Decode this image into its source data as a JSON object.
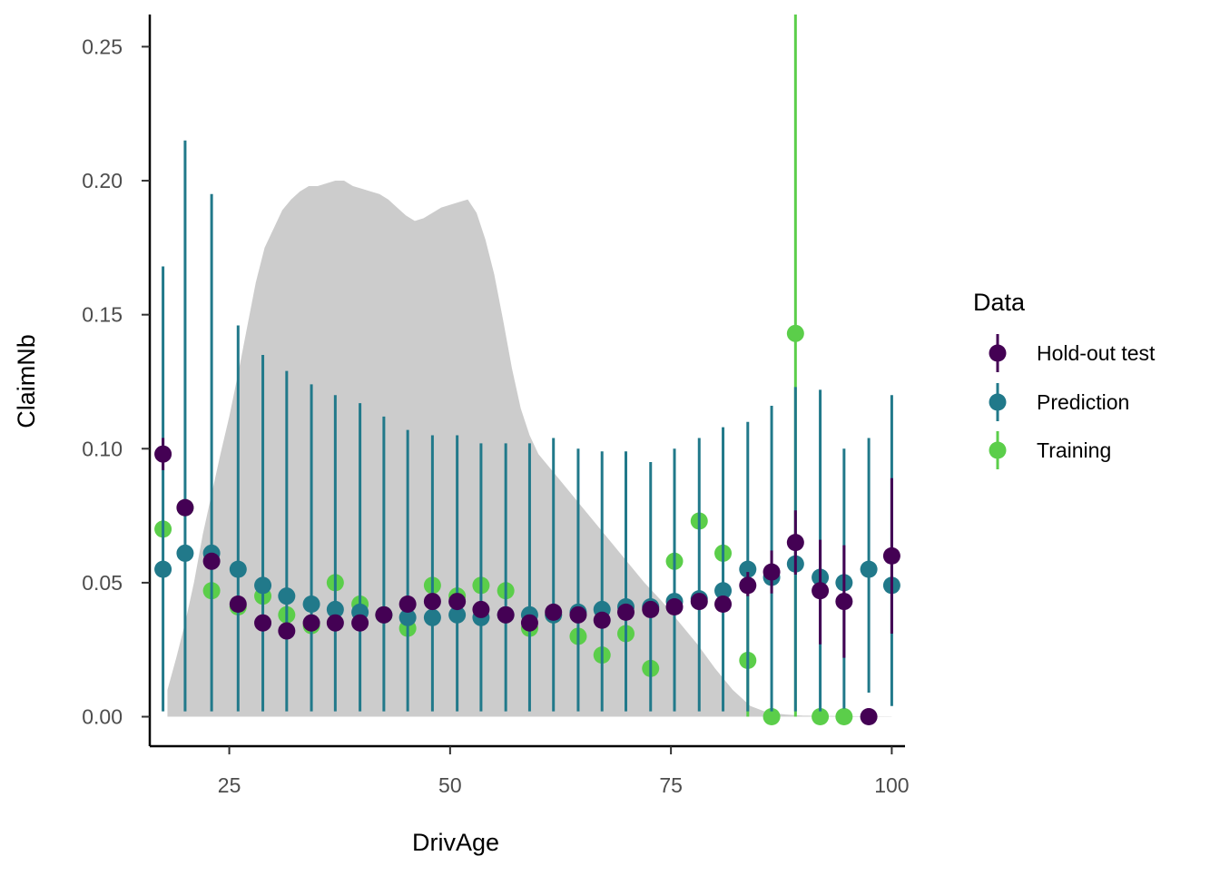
{
  "chart_data": {
    "type": "scatter",
    "title": "",
    "xlabel": "DrivAge",
    "ylabel": "ClaimNb",
    "xlim": [
      16,
      101.5
    ],
    "ylim": [
      -0.011,
      0.262
    ],
    "x_ticks": [
      25,
      50,
      75,
      100
    ],
    "y_ticks": [
      0.0,
      0.05,
      0.1,
      0.15,
      0.2,
      0.25
    ],
    "x_tick_labels": [
      "25",
      "50",
      "75",
      "100"
    ],
    "y_tick_labels": [
      "0.00",
      "0.05",
      "0.10",
      "0.15",
      "0.20",
      "0.25"
    ],
    "grid": false,
    "legend": {
      "title": "Data",
      "position": "right",
      "entries": [
        "Hold-out test",
        "Prediction",
        "Training"
      ]
    },
    "colors": {
      "Hold-out test": "#440154",
      "Prediction": "#21798A",
      "Training": "#5BCE4A",
      "density": "#CCCCCC"
    },
    "density": {
      "x": [
        18,
        19,
        20,
        21,
        22,
        23,
        24,
        25,
        26,
        27,
        28,
        29,
        30,
        31,
        32,
        33,
        34,
        35,
        36,
        37,
        38,
        39,
        40,
        41,
        42,
        43,
        44,
        45,
        46,
        47,
        48,
        49,
        50,
        51,
        52,
        53,
        54,
        55,
        56,
        57,
        58,
        59,
        60,
        62,
        64,
        66,
        68,
        70,
        72,
        74,
        76,
        78,
        80,
        82,
        84,
        86,
        88,
        90,
        95,
        100
      ],
      "y": [
        0.01,
        0.022,
        0.035,
        0.05,
        0.068,
        0.083,
        0.098,
        0.112,
        0.128,
        0.145,
        0.162,
        0.175,
        0.182,
        0.189,
        0.193,
        0.196,
        0.198,
        0.198,
        0.199,
        0.2,
        0.2,
        0.198,
        0.197,
        0.196,
        0.195,
        0.193,
        0.19,
        0.187,
        0.185,
        0.186,
        0.188,
        0.19,
        0.191,
        0.192,
        0.193,
        0.188,
        0.178,
        0.165,
        0.148,
        0.13,
        0.115,
        0.105,
        0.098,
        0.09,
        0.082,
        0.074,
        0.066,
        0.058,
        0.05,
        0.043,
        0.035,
        0.027,
        0.018,
        0.01,
        0.004,
        0.0015,
        0.0008,
        0.0004,
        0.0002,
        0.0001
      ]
    },
    "series": [
      {
        "name": "Training",
        "x": [
          17.5,
          20.0,
          23.0,
          26.0,
          28.8,
          31.5,
          34.3,
          37.0,
          39.8,
          42.5,
          45.2,
          48.0,
          50.8,
          53.5,
          56.3,
          59.0,
          61.7,
          64.5,
          67.2,
          69.9,
          72.7,
          75.4,
          78.2,
          80.9,
          83.7,
          86.4,
          89.1,
          91.9,
          94.6
        ],
        "y": [
          0.07,
          0.078,
          0.047,
          0.041,
          0.045,
          0.038,
          0.034,
          0.05,
          0.042,
          0.038,
          0.033,
          0.049,
          0.045,
          0.049,
          0.047,
          0.033,
          0.038,
          0.03,
          0.023,
          0.031,
          0.018,
          0.058,
          0.073,
          0.061,
          0.021,
          0.0,
          0.143,
          0.0,
          0.0
        ],
        "err": [
          null,
          null,
          null,
          null,
          null,
          null,
          null,
          null,
          null,
          null,
          null,
          null,
          null,
          null,
          null,
          null,
          null,
          null,
          null,
          null,
          null,
          null,
          null,
          null,
          [
            0.0,
            0.054
          ],
          [
            0.0,
            0.003
          ],
          [
            0.0,
            0.27
          ],
          [
            0.0,
            0.003
          ],
          [
            0.0,
            0.003
          ]
        ]
      },
      {
        "name": "Prediction",
        "x": [
          17.5,
          20.0,
          23.0,
          26.0,
          28.8,
          31.5,
          34.3,
          37.0,
          39.8,
          42.5,
          45.2,
          48.0,
          50.8,
          53.5,
          56.3,
          59.0,
          61.7,
          64.5,
          67.2,
          69.9,
          72.7,
          75.4,
          78.2,
          80.9,
          83.7,
          86.4,
          89.1,
          91.9,
          94.6,
          97.4,
          100.0
        ],
        "y": [
          0.055,
          0.061,
          0.061,
          0.055,
          0.049,
          0.045,
          0.042,
          0.04,
          0.039,
          0.038,
          0.037,
          0.037,
          0.038,
          0.037,
          0.038,
          0.038,
          0.038,
          0.039,
          0.04,
          0.041,
          0.041,
          0.043,
          0.044,
          0.047,
          0.055,
          0.052,
          0.057,
          0.052,
          0.05,
          0.055,
          0.049
        ],
        "err": [
          [
            0.002,
            0.168
          ],
          [
            0.002,
            0.215
          ],
          [
            0.002,
            0.195
          ],
          [
            0.002,
            0.146
          ],
          [
            0.002,
            0.135
          ],
          [
            0.002,
            0.129
          ],
          [
            0.002,
            0.124
          ],
          [
            0.002,
            0.12
          ],
          [
            0.002,
            0.117
          ],
          [
            0.002,
            0.112
          ],
          [
            0.002,
            0.107
          ],
          [
            0.002,
            0.105
          ],
          [
            0.002,
            0.105
          ],
          [
            0.002,
            0.102
          ],
          [
            0.002,
            0.102
          ],
          [
            0.002,
            0.102
          ],
          [
            0.002,
            0.104
          ],
          [
            0.002,
            0.1
          ],
          [
            0.002,
            0.099
          ],
          [
            0.002,
            0.099
          ],
          [
            0.002,
            0.095
          ],
          [
            0.002,
            0.1
          ],
          [
            0.002,
            0.104
          ],
          [
            0.002,
            0.108
          ],
          [
            0.002,
            0.11
          ],
          [
            0.002,
            0.116
          ],
          [
            0.002,
            0.123
          ],
          [
            0.002,
            0.122
          ],
          [
            0.003,
            0.1
          ],
          [
            0.009,
            0.104
          ],
          [
            0.004,
            0.12
          ]
        ]
      },
      {
        "name": "Hold-out test",
        "x": [
          17.5,
          20.0,
          23.0,
          26.0,
          28.8,
          31.5,
          34.3,
          37.0,
          39.8,
          42.5,
          45.2,
          48.0,
          50.8,
          53.5,
          56.3,
          59.0,
          61.7,
          64.5,
          67.2,
          69.9,
          72.7,
          75.4,
          78.2,
          80.9,
          83.7,
          86.4,
          89.1,
          91.9,
          94.6,
          97.4,
          100.0
        ],
        "y": [
          0.098,
          0.078,
          0.058,
          0.042,
          0.035,
          0.032,
          0.035,
          0.035,
          0.035,
          0.038,
          0.042,
          0.043,
          0.043,
          0.04,
          0.038,
          0.035,
          0.039,
          0.038,
          0.036,
          0.039,
          0.04,
          0.041,
          0.043,
          0.042,
          0.049,
          0.054,
          0.065,
          0.047,
          0.043,
          0.0,
          0.06
        ],
        "err": [
          [
            0.092,
            0.104
          ],
          null,
          null,
          null,
          null,
          null,
          null,
          null,
          null,
          null,
          null,
          null,
          null,
          null,
          null,
          null,
          null,
          null,
          null,
          null,
          null,
          null,
          null,
          null,
          [
            0.045,
            0.054
          ],
          [
            0.046,
            0.062
          ],
          [
            0.053,
            0.077
          ],
          [
            0.027,
            0.066
          ],
          [
            0.022,
            0.064
          ],
          null,
          [
            0.031,
            0.089
          ]
        ]
      }
    ]
  }
}
